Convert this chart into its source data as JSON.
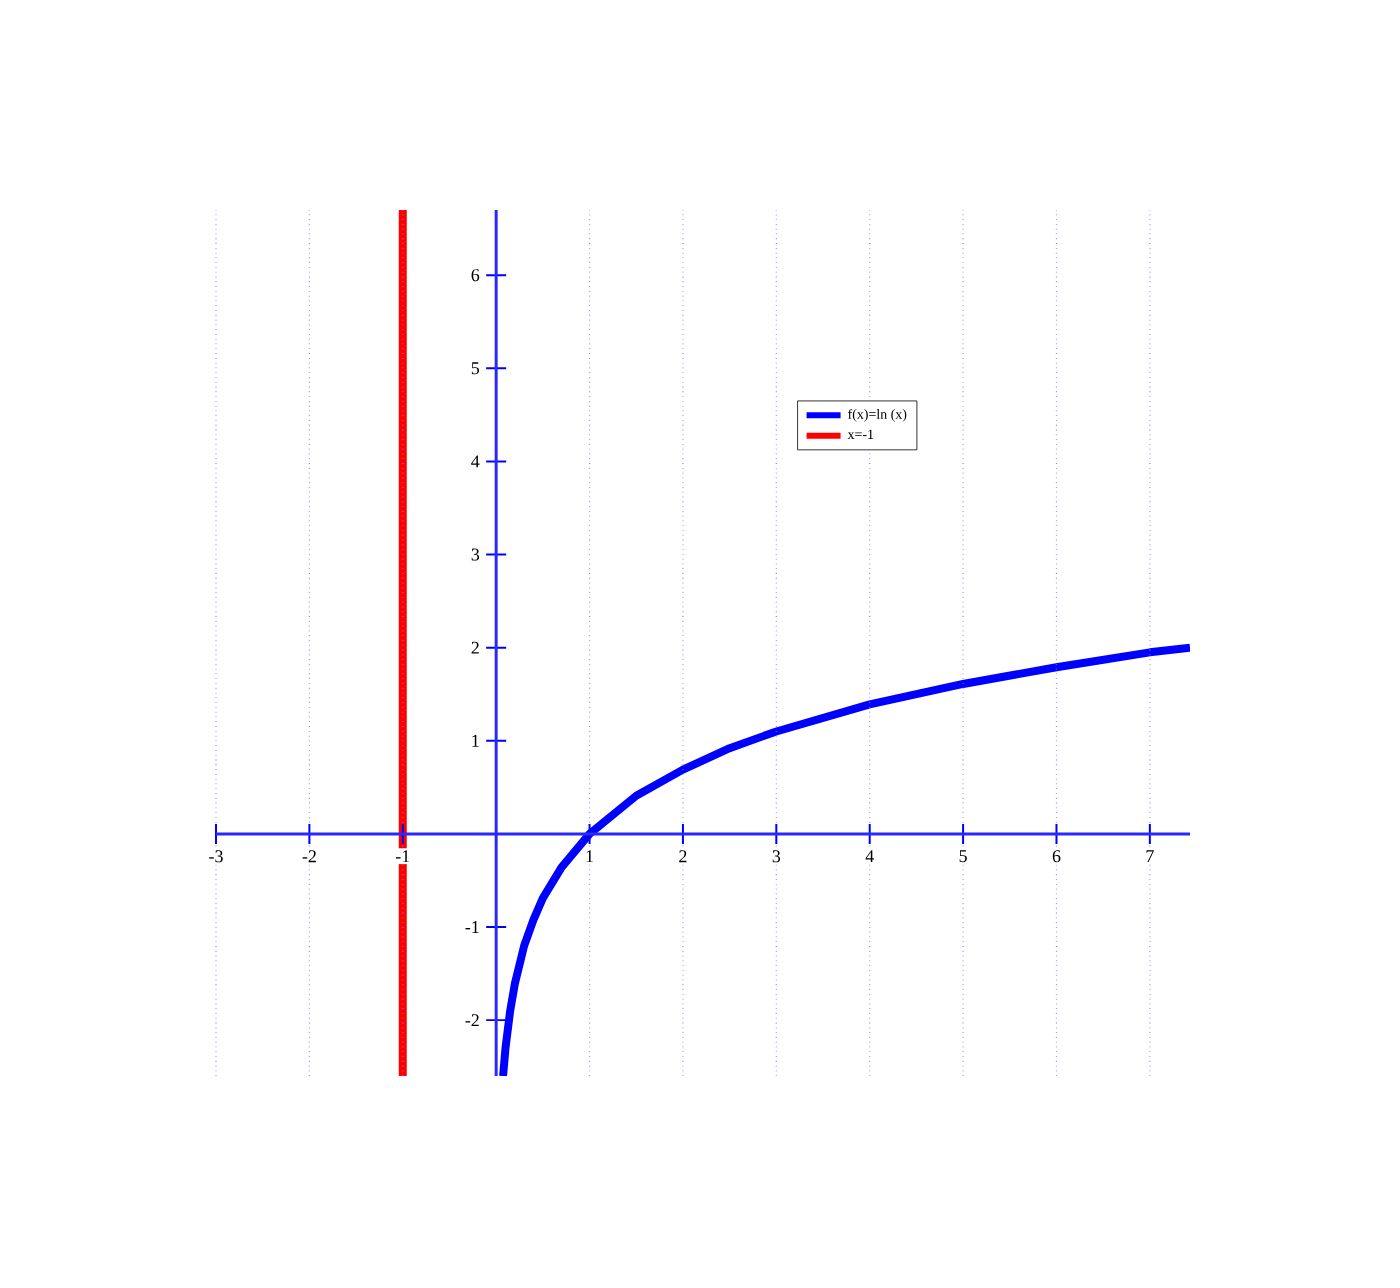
{
  "chart_data": {
    "type": "line",
    "xlim": [
      -3,
      7.43
    ],
    "ylim": [
      -2.6,
      6.7
    ],
    "xticks": [
      -3,
      -2,
      -1,
      {
        "value": 0,
        "label": null
      },
      1,
      2,
      3,
      4,
      5,
      6,
      7
    ],
    "yticks": [
      -2,
      -1,
      {
        "value": 0,
        "label": null
      },
      1,
      2,
      3,
      4,
      5,
      6
    ],
    "grid": "x",
    "legend": "top right",
    "series": [
      {
        "name": "f(x)=ln (x)",
        "color": "#0000ff",
        "x": [
          0.074,
          0.1,
          0.15,
          0.2,
          0.3,
          0.4,
          0.5,
          0.7,
          1,
          1.5,
          2,
          2.5,
          3,
          4,
          5,
          6,
          7,
          7.43
        ],
        "values": [
          -2.6,
          -2.3,
          -1.9,
          -1.61,
          -1.2,
          -0.92,
          -0.69,
          -0.36,
          0,
          0.41,
          0.69,
          0.92,
          1.1,
          1.39,
          1.61,
          1.79,
          1.95,
          2.0
        ]
      },
      {
        "name": "x=-1",
        "color": "#ff0000",
        "x": [
          -1,
          -1
        ],
        "values": [
          -2.6,
          6.7
        ]
      }
    ]
  }
}
